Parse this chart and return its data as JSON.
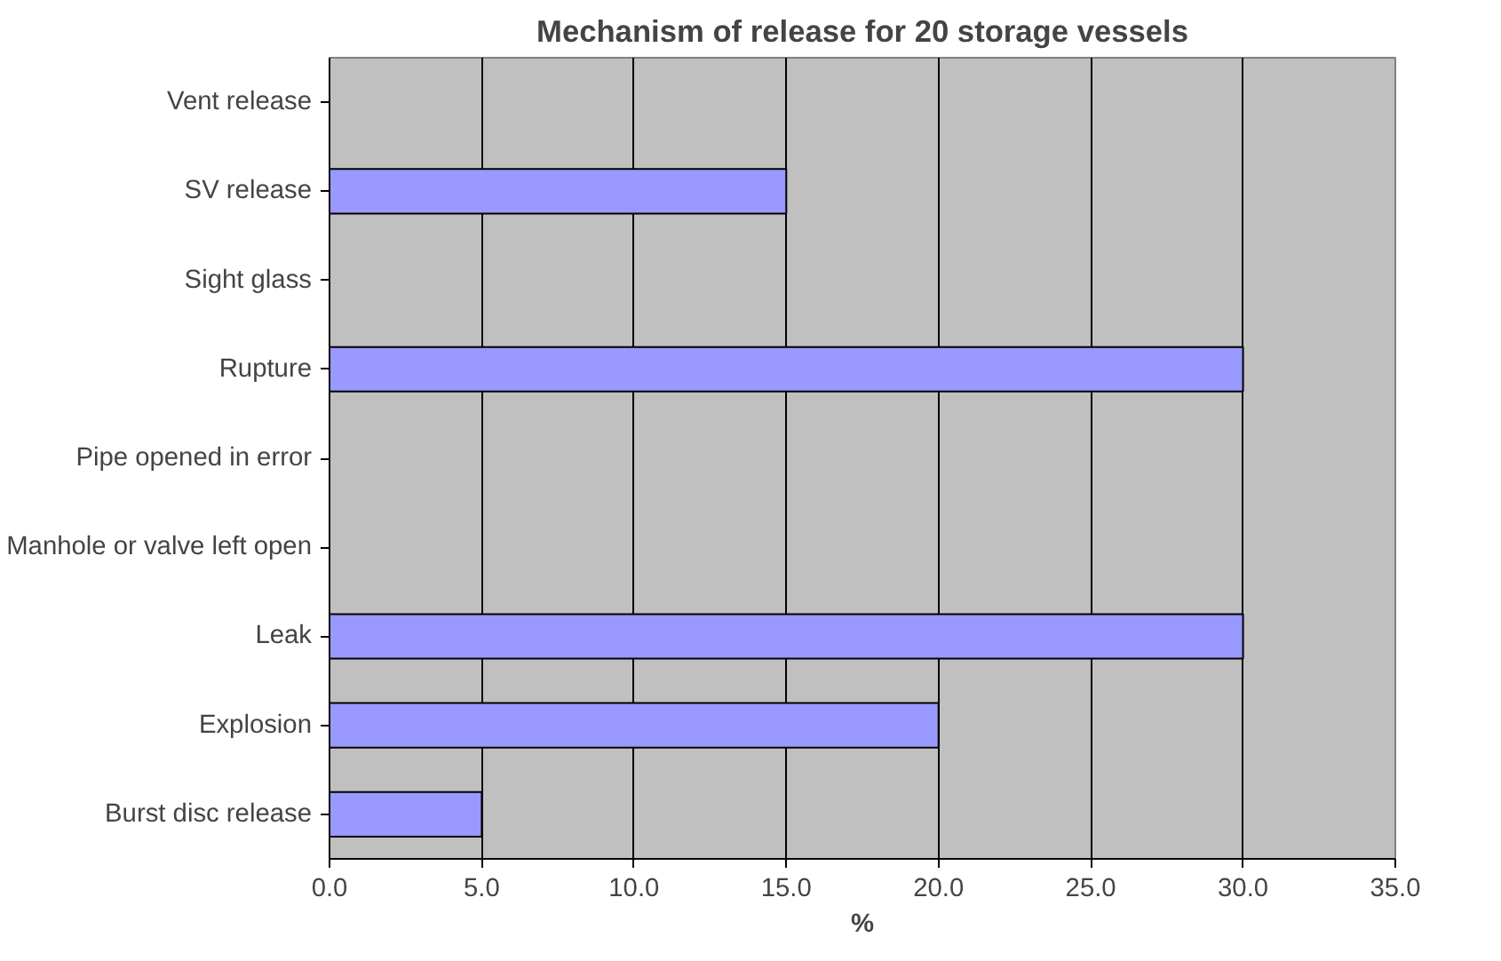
{
  "chart_data": {
    "type": "bar",
    "orientation": "horizontal",
    "title": "Mechanism of release for 20 storage vessels",
    "xlabel": "%",
    "categories": [
      "Vent release",
      "SV release",
      "Sight glass",
      "Rupture",
      "Pipe opened in error",
      "Manhole or valve left open",
      "Leak",
      "Explosion",
      "Burst disc release"
    ],
    "values": [
      0,
      15,
      0,
      30,
      0,
      0,
      30,
      20,
      5
    ],
    "color": "#9999ff",
    "xlim": [
      0,
      35
    ],
    "xticks": [
      {
        "value": 0,
        "label": "0.0"
      },
      {
        "value": 5,
        "label": "5.0"
      },
      {
        "value": 10,
        "label": "10.0"
      },
      {
        "value": 15,
        "label": "15.0"
      },
      {
        "value": 20,
        "label": "20.0"
      },
      {
        "value": 25,
        "label": "25.0"
      },
      {
        "value": 30,
        "label": "30.0"
      },
      {
        "value": 35,
        "label": "35.0"
      }
    ],
    "grid": "x"
  }
}
